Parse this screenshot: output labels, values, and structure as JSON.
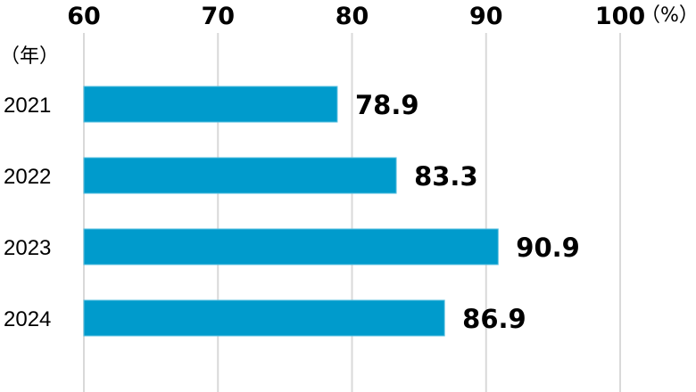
{
  "chart_data": {
    "type": "bar",
    "orientation": "horizontal",
    "categories": [
      "2021",
      "2022",
      "2023",
      "2024"
    ],
    "values": [
      78.9,
      83.3,
      90.9,
      86.9
    ],
    "value_labels": [
      "78.9",
      "83.3",
      "90.9",
      "86.9"
    ],
    "xlim": [
      60,
      100
    ],
    "xticks": [
      "60",
      "70",
      "80",
      "90",
      "100"
    ],
    "x_unit": "（%）",
    "y_unit": "（年）",
    "title": "",
    "grid": true,
    "colors": {
      "bar": "#009bcc",
      "grid": "#d9d9d9"
    }
  }
}
